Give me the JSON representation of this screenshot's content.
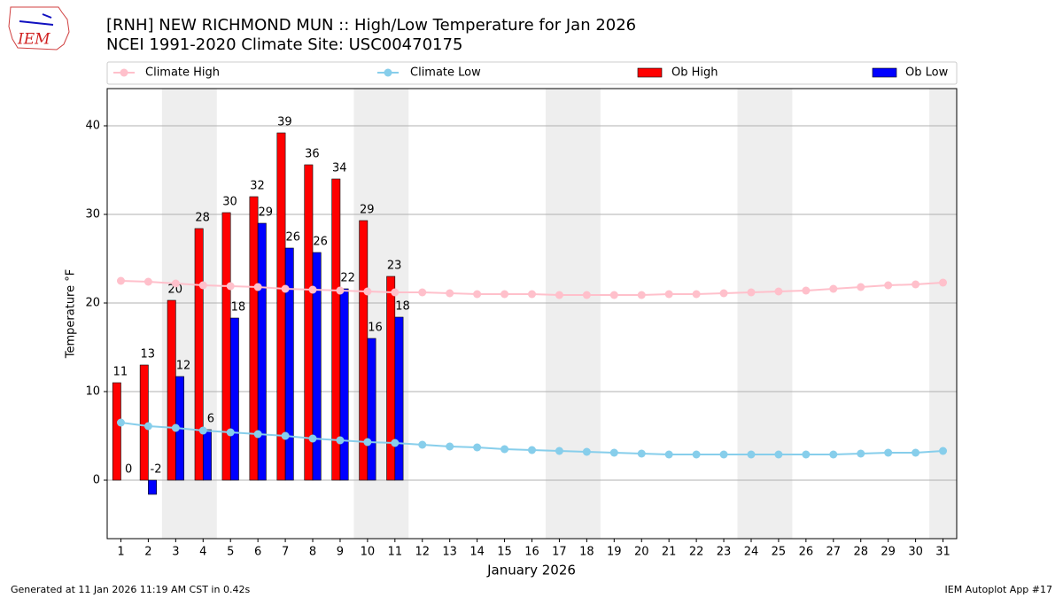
{
  "chart_data": {
    "type": "bar",
    "title": "[RNH] NEW RICHMOND MUN :: High/Low Temperature for Jan 2026",
    "subtitle": "NCEI 1991-2020 Climate Site: USC00470175",
    "logo_text": "IEM",
    "x_label": "January 2026",
    "y_label": "Temperature °F",
    "footer_left": "Generated at 11 Jan 2026 11:19 AM CST in 0.42s",
    "footer_right": "IEM Autoplot App #17",
    "x": [
      1,
      2,
      3,
      4,
      5,
      6,
      7,
      8,
      9,
      10,
      11,
      12,
      13,
      14,
      15,
      16,
      17,
      18,
      19,
      20,
      21,
      22,
      23,
      24,
      25,
      26,
      27,
      28,
      29,
      30,
      31
    ],
    "xticks": [
      1,
      2,
      3,
      4,
      5,
      6,
      7,
      8,
      9,
      10,
      11,
      12,
      13,
      14,
      15,
      16,
      17,
      18,
      19,
      20,
      21,
      22,
      23,
      24,
      25,
      26,
      27,
      28,
      29,
      30,
      31
    ],
    "xlim": [
      0.5,
      31.5
    ],
    "ylim": [
      -6.6,
      44.2
    ],
    "yticks": [
      0,
      10,
      20,
      30,
      40
    ],
    "grid": true,
    "shaded_ranges": [
      [
        2.5,
        4.5
      ],
      [
        9.5,
        11.5
      ],
      [
        16.5,
        18.5
      ],
      [
        23.5,
        25.5
      ],
      [
        30.5,
        31.5
      ]
    ],
    "shade_color": "#eeeeee",
    "series": [
      {
        "name": "Climate High",
        "kind": "line",
        "color": "#ffc0cb",
        "values": [
          22.5,
          22.4,
          22.2,
          22.0,
          21.9,
          21.8,
          21.6,
          21.5,
          21.4,
          21.3,
          21.2,
          21.2,
          21.1,
          21.0,
          21.0,
          21.0,
          20.9,
          20.9,
          20.9,
          20.9,
          21.0,
          21.0,
          21.1,
          21.2,
          21.3,
          21.4,
          21.6,
          21.8,
          22.0,
          22.1,
          22.3
        ]
      },
      {
        "name": "Climate Low",
        "kind": "line",
        "color": "#87ceeb",
        "values": [
          6.5,
          6.1,
          5.9,
          5.6,
          5.4,
          5.2,
          5.0,
          4.7,
          4.5,
          4.3,
          4.2,
          4.0,
          3.8,
          3.7,
          3.5,
          3.4,
          3.3,
          3.2,
          3.1,
          3.0,
          2.9,
          2.9,
          2.9,
          2.9,
          2.9,
          2.9,
          2.9,
          3.0,
          3.1,
          3.1,
          3.3
        ]
      },
      {
        "name": "Ob High",
        "kind": "bar",
        "offset": -1,
        "color": "#ff0000",
        "values": [
          11,
          13,
          20.3,
          28.4,
          30.2,
          32,
          39.2,
          35.6,
          34,
          29.3,
          23,
          null,
          null,
          null,
          null,
          null,
          null,
          null,
          null,
          null,
          null,
          null,
          null,
          null,
          null,
          null,
          null,
          null,
          null,
          null,
          null
        ],
        "value_labels": [
          "11",
          "13",
          "20",
          "28",
          "30",
          "32",
          "39",
          "36",
          "34",
          "29",
          "23",
          null,
          null,
          null,
          null,
          null,
          null,
          null,
          null,
          null,
          null,
          null,
          null,
          null,
          null,
          null,
          null,
          null,
          null,
          null,
          null
        ]
      },
      {
        "name": "Ob Low",
        "kind": "bar",
        "offset": 1,
        "color": "#0000ff",
        "values": [
          0,
          -1.6,
          11.7,
          5.7,
          18.3,
          29,
          26.2,
          25.7,
          21.6,
          16,
          18.4,
          null,
          null,
          null,
          null,
          null,
          null,
          null,
          null,
          null,
          null,
          null,
          null,
          null,
          null,
          null,
          null,
          null,
          null,
          null,
          null
        ],
        "value_labels": [
          "0",
          "-2",
          "12",
          "6",
          "18",
          "29",
          "26",
          "26",
          "22",
          "16",
          "18",
          null,
          null,
          null,
          null,
          null,
          null,
          null,
          null,
          null,
          null,
          null,
          null,
          null,
          null,
          null,
          null,
          null,
          null,
          null,
          null
        ]
      }
    ]
  }
}
